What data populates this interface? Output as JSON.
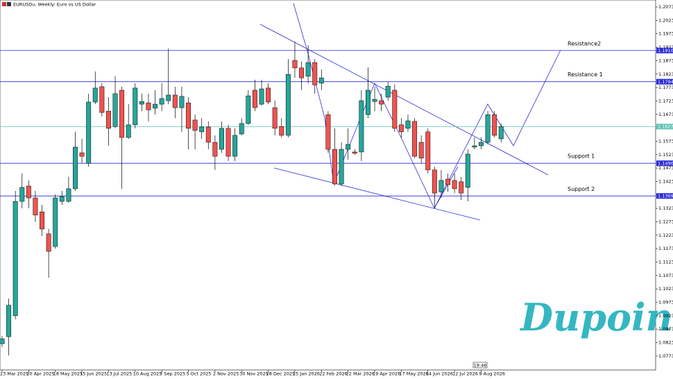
{
  "chart_data": {
    "type": "candlestick",
    "title": "EURUSDu, Weekly: Euro vs US Dollar",
    "time_label": "19:46",
    "watermark": "Dupoin",
    "up_color": "#26a69a",
    "down_color": "#ef5350",
    "ylim": [
      1.0721,
      1.2099
    ],
    "yticks": [
      {
        "value": 1.2073,
        "label": "1.20730"
      },
      {
        "value": 1.2023,
        "label": "1.20230"
      },
      {
        "value": 1.1973,
        "label": "1.19730"
      },
      {
        "value": 1.1923,
        "label": "1.19230"
      },
      {
        "value": 1.1873,
        "label": "1.18730"
      },
      {
        "value": 1.1823,
        "label": "1.18230"
      },
      {
        "value": 1.1773,
        "label": "1.17730"
      },
      {
        "value": 1.1723,
        "label": "1.17230"
      },
      {
        "value": 1.1673,
        "label": "1.16730"
      },
      {
        "value": 1.1623,
        "label": "1.16230"
      },
      {
        "value": 1.1573,
        "label": "1.15730"
      },
      {
        "value": 1.1523,
        "label": "1.15230"
      },
      {
        "value": 1.1473,
        "label": "1.14730"
      },
      {
        "value": 1.1423,
        "label": "1.14230"
      },
      {
        "value": 1.1373,
        "label": "1.13730"
      },
      {
        "value": 1.1323,
        "label": "1.13230"
      },
      {
        "value": 1.1273,
        "label": "1.12730"
      },
      {
        "value": 1.1223,
        "label": "1.12230"
      },
      {
        "value": 1.1173,
        "label": "1.11730"
      },
      {
        "value": 1.1123,
        "label": "1.11230"
      },
      {
        "value": 1.1073,
        "label": "1.10730"
      },
      {
        "value": 1.1023,
        "label": "1.10230"
      },
      {
        "value": 1.0973,
        "label": "1.09730"
      },
      {
        "value": 1.0923,
        "label": "1.09230"
      },
      {
        "value": 1.0873,
        "label": "1.08730"
      },
      {
        "value": 1.0823,
        "label": "1.08230"
      },
      {
        "value": 1.0773,
        "label": "1.07730"
      }
    ],
    "levels": [
      {
        "name": "Resistance2",
        "value": 1.19109,
        "color": "#2b2bd6"
      },
      {
        "name": "Resistance 1",
        "value": 1.17947,
        "color": "#2b2bd6"
      },
      {
        "value": 1.16275,
        "color": "#5fc4b4"
      },
      {
        "name": "Support 1",
        "value": 1.14909,
        "color": "#2b2bd6"
      },
      {
        "name": "Support 2",
        "value": 1.13691,
        "color": "#2b2bd6"
      }
    ],
    "categories": [
      "23 Mar 2025",
      null,
      null,
      null,
      "20 Apr 2025",
      null,
      null,
      null,
      "18 May 2025",
      null,
      null,
      null,
      "15 Jun 2025",
      null,
      null,
      null,
      "13 Jul 2025",
      null,
      null,
      null,
      "10 Aug 2025",
      null,
      null,
      null,
      "7 Sep 2025",
      null,
      null,
      null,
      "5 Oct 2025",
      null,
      null,
      null,
      "2 Nov 2025",
      null,
      null,
      null,
      "30 Nov 2025",
      null,
      null,
      null,
      "28 Dec 2025",
      null,
      null,
      null,
      "25 Jan 2026",
      null,
      null,
      null,
      "22 Feb 2026",
      null,
      null,
      null,
      "22 Mar 2026",
      null,
      null,
      null,
      "19 Apr 2026",
      null,
      null,
      null,
      "17 May 2026",
      null,
      null,
      null,
      "14 Jun 2026",
      null,
      null,
      null,
      "12 Jul 2026",
      null,
      null,
      null,
      "9 Aug 2026",
      null,
      null,
      null
    ],
    "open": [
      1.0819,
      1.0845,
      1.0923,
      1.1349,
      1.1406,
      1.1362,
      1.131,
      1.1228,
      1.1181,
      1.1349,
      1.1349,
      1.1396,
      1.153,
      1.1491,
      1.1719,
      1.1776,
      1.1685,
      1.1628,
      1.1763,
      1.1587,
      1.1634,
      1.1711,
      1.1716,
      1.1696,
      1.1711,
      1.1724,
      1.1745,
      1.1698,
      1.1716,
      1.1652,
      1.1608,
      1.1626,
      1.1569,
      1.1543,
      1.1621,
      1.1517,
      1.16,
      1.1639,
      1.1763,
      1.1711,
      1.1771,
      1.1698,
      1.1628,
      1.1595,
      1.1874,
      1.1846,
      1.1815,
      1.1866,
      1.1789,
      1.1672,
      1.1543,
      1.1414,
      1.1543,
      1.1533,
      1.1533,
      1.1672,
      1.1721,
      1.1724,
      1.1737,
      1.1763,
      1.1634,
      1.1621,
      1.1647,
      1.1569,
      1.1608,
      1.1466,
      1.1384,
      1.1432,
      1.1427,
      1.1422,
      1.1401,
      1.1551,
      1.1556,
      1.1569,
      1.1672,
      1.1582
    ],
    "high": [
      1.0848,
      1.0987,
      1.1388,
      1.1453,
      1.1427,
      1.1388,
      1.1336,
      1.1246,
      1.1375,
      1.1388,
      1.144,
      1.1608,
      1.1582,
      1.175,
      1.1833,
      1.1789,
      1.1737,
      1.1815,
      1.1776,
      1.1711,
      1.1789,
      1.175,
      1.175,
      1.1763,
      1.1789,
      1.1918,
      1.1776,
      1.1776,
      1.1737,
      1.1672,
      1.1659,
      1.1647,
      1.1595,
      1.1647,
      1.1634,
      1.1621,
      1.1659,
      1.1763,
      1.1802,
      1.1802,
      1.1789,
      1.1724,
      1.1659,
      1.1879,
      1.1944,
      1.1871,
      1.1931,
      1.1879,
      1.184,
      1.1685,
      1.1621,
      1.1569,
      1.1621,
      1.1543,
      1.1763,
      1.1848,
      1.1776,
      1.175,
      1.1794,
      1.1784,
      1.1659,
      1.1672,
      1.1659,
      1.1595,
      1.1621,
      1.1478,
      1.1466,
      1.1453,
      1.1453,
      1.144,
      1.1543,
      1.1587,
      1.1587,
      1.1685,
      1.1685,
      1.1639
    ],
    "low": [
      1.0806,
      1.0775,
      1.091,
      1.1323,
      1.1323,
      1.1272,
      1.122,
      1.1065,
      1.1173,
      1.1336,
      1.1344,
      1.1388,
      1.1491,
      1.1478,
      1.1711,
      1.1665,
      1.1556,
      1.1621,
      1.1396,
      1.1582,
      1.1621,
      1.1685,
      1.1647,
      1.1672,
      1.1685,
      1.1711,
      1.1659,
      1.1608,
      1.1543,
      1.1543,
      1.1582,
      1.1543,
      1.1466,
      1.153,
      1.1499,
      1.1499,
      1.1595,
      1.1634,
      1.1685,
      1.1706,
      1.1711,
      1.1595,
      1.1587,
      1.1587,
      1.1809,
      1.1763,
      1.1789,
      1.175,
      1.1763,
      1.153,
      1.1408,
      1.1406,
      1.1504,
      1.1522,
      1.1499,
      1.1659,
      1.1685,
      1.1685,
      1.1724,
      1.1608,
      1.1587,
      1.1608,
      1.151,
      1.1491,
      1.1453,
      1.1323,
      1.1362,
      1.1384,
      1.138,
      1.1354,
      1.1349,
      1.1543,
      1.1543,
      1.1561,
      1.1587,
      1.1569
    ],
    "close": [
      1.0837,
      1.0962,
      1.1349,
      1.1401,
      1.1362,
      1.1298,
      1.1246,
      1.1163,
      1.1362,
      1.1367,
      1.1396,
      1.1551,
      1.1517,
      1.1719,
      1.1771,
      1.168,
      1.1621,
      1.175,
      1.1587,
      1.1634,
      1.1771,
      1.1721,
      1.169,
      1.1711,
      1.1732,
      1.1745,
      1.1698,
      1.174,
      1.1621,
      1.1613,
      1.1626,
      1.1569,
      1.1517,
      1.1621,
      1.1517,
      1.1595,
      1.1639,
      1.1742,
      1.1698,
      1.1768,
      1.1719,
      1.1621,
      1.1595,
      1.1822,
      1.1846,
      1.1809,
      1.1866,
      1.1783,
      1.1809,
      1.1543,
      1.1414,
      1.1543,
      1.1561,
      1.1528,
      1.1724,
      1.1763,
      1.1729,
      1.1711,
      1.1778,
      1.1621,
      1.1608,
      1.1649,
      1.1517,
      1.151,
      1.1466,
      1.138,
      1.1427,
      1.1411,
      1.1396,
      1.138,
      1.1525,
      1.1556,
      1.1569,
      1.1672,
      1.1595,
      1.16275
    ]
  }
}
